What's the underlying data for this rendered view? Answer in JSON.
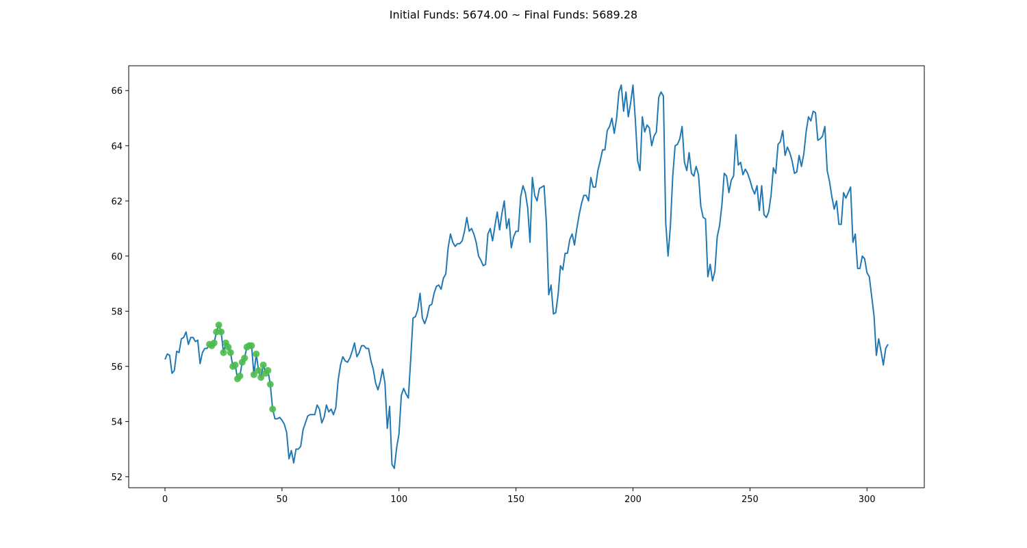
{
  "chart_data": {
    "type": "line",
    "title": "Initial Funds: 5674.00 ~ Final Funds: 5689.28",
    "xlabel": "",
    "ylabel": "",
    "xlim": [
      -15.5,
      324.5
    ],
    "ylim": [
      51.6,
      66.9
    ],
    "x_ticks": [
      0,
      50,
      100,
      150,
      200,
      250,
      300
    ],
    "y_ticks": [
      52,
      54,
      56,
      58,
      60,
      62,
      64,
      66
    ],
    "grid": false,
    "colors": {
      "line": "#1f77b4",
      "marker": "#4cbb4c"
    },
    "series": [
      {
        "x_start": 0,
        "values": [
          56.25,
          56.45,
          56.4,
          55.75,
          55.85,
          56.55,
          56.5,
          57.0,
          57.05,
          57.25,
          56.8,
          57.05,
          57.05,
          56.9,
          56.95,
          56.1,
          56.5,
          56.65,
          56.65,
          56.8,
          56.75,
          56.85,
          57.25,
          57.5,
          57.25,
          56.5,
          56.85,
          56.7,
          56.5,
          56.0,
          56.05,
          55.55,
          55.65,
          56.15,
          56.3,
          56.7,
          56.75,
          56.75,
          55.7,
          56.45,
          55.85,
          55.6,
          56.05,
          55.75,
          55.85,
          55.35,
          54.45,
          54.1,
          54.1,
          54.15,
          54.05,
          53.9,
          53.6,
          52.65,
          52.95,
          52.5,
          53.0,
          53.0,
          53.1,
          53.7,
          53.95,
          54.2,
          54.25,
          54.25,
          54.25,
          54.6,
          54.45,
          53.95,
          54.15,
          54.6,
          54.35,
          54.45,
          54.25,
          54.5,
          55.5,
          56.05,
          56.35,
          56.2,
          56.15,
          56.3,
          56.55,
          56.85,
          56.35,
          56.5,
          56.75,
          56.75,
          56.65,
          56.65,
          56.2,
          55.9,
          55.4,
          55.15,
          55.45,
          55.9,
          55.4,
          53.75,
          54.55,
          52.45,
          52.3,
          53.05,
          53.55,
          54.95,
          55.2,
          55.0,
          54.85,
          56.25,
          57.75,
          57.8,
          58.05,
          58.65,
          57.75,
          57.55,
          57.8,
          58.2,
          58.25,
          58.65,
          58.9,
          58.95,
          58.8,
          59.2,
          59.35,
          60.3,
          60.8,
          60.5,
          60.35,
          60.45,
          60.45,
          60.55,
          60.9,
          61.4,
          60.9,
          61.0,
          60.8,
          60.5,
          60.0,
          59.85,
          59.65,
          59.7,
          60.8,
          61.0,
          60.55,
          61.1,
          61.6,
          60.95,
          61.55,
          62.0,
          61.0,
          61.35,
          60.3,
          60.7,
          60.9,
          60.9,
          62.15,
          62.55,
          62.3,
          61.75,
          60.5,
          62.85,
          62.2,
          62.0,
          62.45,
          62.5,
          62.55,
          61.2,
          58.6,
          58.95,
          57.9,
          57.95,
          58.6,
          59.65,
          59.5,
          60.1,
          60.1,
          60.6,
          60.8,
          60.4,
          61.0,
          61.5,
          61.9,
          62.2,
          62.2,
          62.0,
          62.85,
          62.5,
          62.5,
          63.1,
          63.45,
          63.85,
          63.85,
          64.55,
          64.7,
          65.0,
          64.45,
          65.0,
          65.95,
          66.2,
          65.25,
          65.95,
          65.05,
          65.55,
          66.2,
          64.95,
          63.45,
          63.1,
          65.05,
          64.5,
          64.75,
          64.65,
          64.0,
          64.35,
          64.5,
          65.75,
          65.95,
          65.8,
          61.2,
          60.0,
          61.1,
          62.9,
          64.0,
          64.05,
          64.25,
          64.7,
          63.4,
          63.1,
          63.75,
          63.0,
          62.9,
          63.25,
          62.95,
          61.8,
          61.4,
          61.35,
          59.25,
          59.7,
          59.1,
          59.45,
          60.7,
          61.1,
          61.85,
          63.0,
          62.9,
          62.3,
          62.75,
          62.9,
          64.4,
          63.3,
          63.4,
          62.95,
          63.15,
          63.0,
          62.75,
          62.45,
          62.25,
          62.55,
          61.65,
          62.55,
          61.5,
          61.4,
          61.6,
          62.2,
          63.2,
          63.0,
          64.05,
          64.15,
          64.55,
          63.65,
          63.95,
          63.75,
          63.45,
          63.0,
          63.05,
          63.65,
          63.25,
          63.7,
          64.5,
          65.05,
          64.9,
          65.25,
          65.2,
          64.2,
          64.25,
          64.35,
          64.7,
          63.1,
          62.7,
          62.15,
          61.7,
          62.0,
          61.15,
          61.15,
          62.3,
          62.1,
          62.3,
          62.5,
          60.5,
          60.8,
          59.55,
          59.55,
          60.0,
          59.9,
          59.4,
          59.25,
          58.55,
          57.85,
          56.4,
          57.0,
          56.55,
          56.05,
          56.65,
          56.8
        ]
      }
    ],
    "markers": [
      {
        "x": 19,
        "y": 56.8
      },
      {
        "x": 20,
        "y": 56.75
      },
      {
        "x": 21,
        "y": 56.85
      },
      {
        "x": 22,
        "y": 57.25
      },
      {
        "x": 23,
        "y": 57.5
      },
      {
        "x": 24,
        "y": 57.25
      },
      {
        "x": 25,
        "y": 56.5
      },
      {
        "x": 26,
        "y": 56.85
      },
      {
        "x": 27,
        "y": 56.7
      },
      {
        "x": 28,
        "y": 56.5
      },
      {
        "x": 29,
        "y": 56.0
      },
      {
        "x": 30,
        "y": 56.05
      },
      {
        "x": 31,
        "y": 55.55
      },
      {
        "x": 32,
        "y": 55.65
      },
      {
        "x": 33,
        "y": 56.15
      },
      {
        "x": 34,
        "y": 56.3
      },
      {
        "x": 35,
        "y": 56.7
      },
      {
        "x": 36,
        "y": 56.75
      },
      {
        "x": 37,
        "y": 56.75
      },
      {
        "x": 38,
        "y": 55.7
      },
      {
        "x": 39,
        "y": 56.45
      },
      {
        "x": 40,
        "y": 55.85
      },
      {
        "x": 41,
        "y": 55.6
      },
      {
        "x": 42,
        "y": 56.05
      },
      {
        "x": 43,
        "y": 55.75
      },
      {
        "x": 44,
        "y": 55.85
      },
      {
        "x": 45,
        "y": 55.35
      },
      {
        "x": 46,
        "y": 54.45
      }
    ]
  }
}
